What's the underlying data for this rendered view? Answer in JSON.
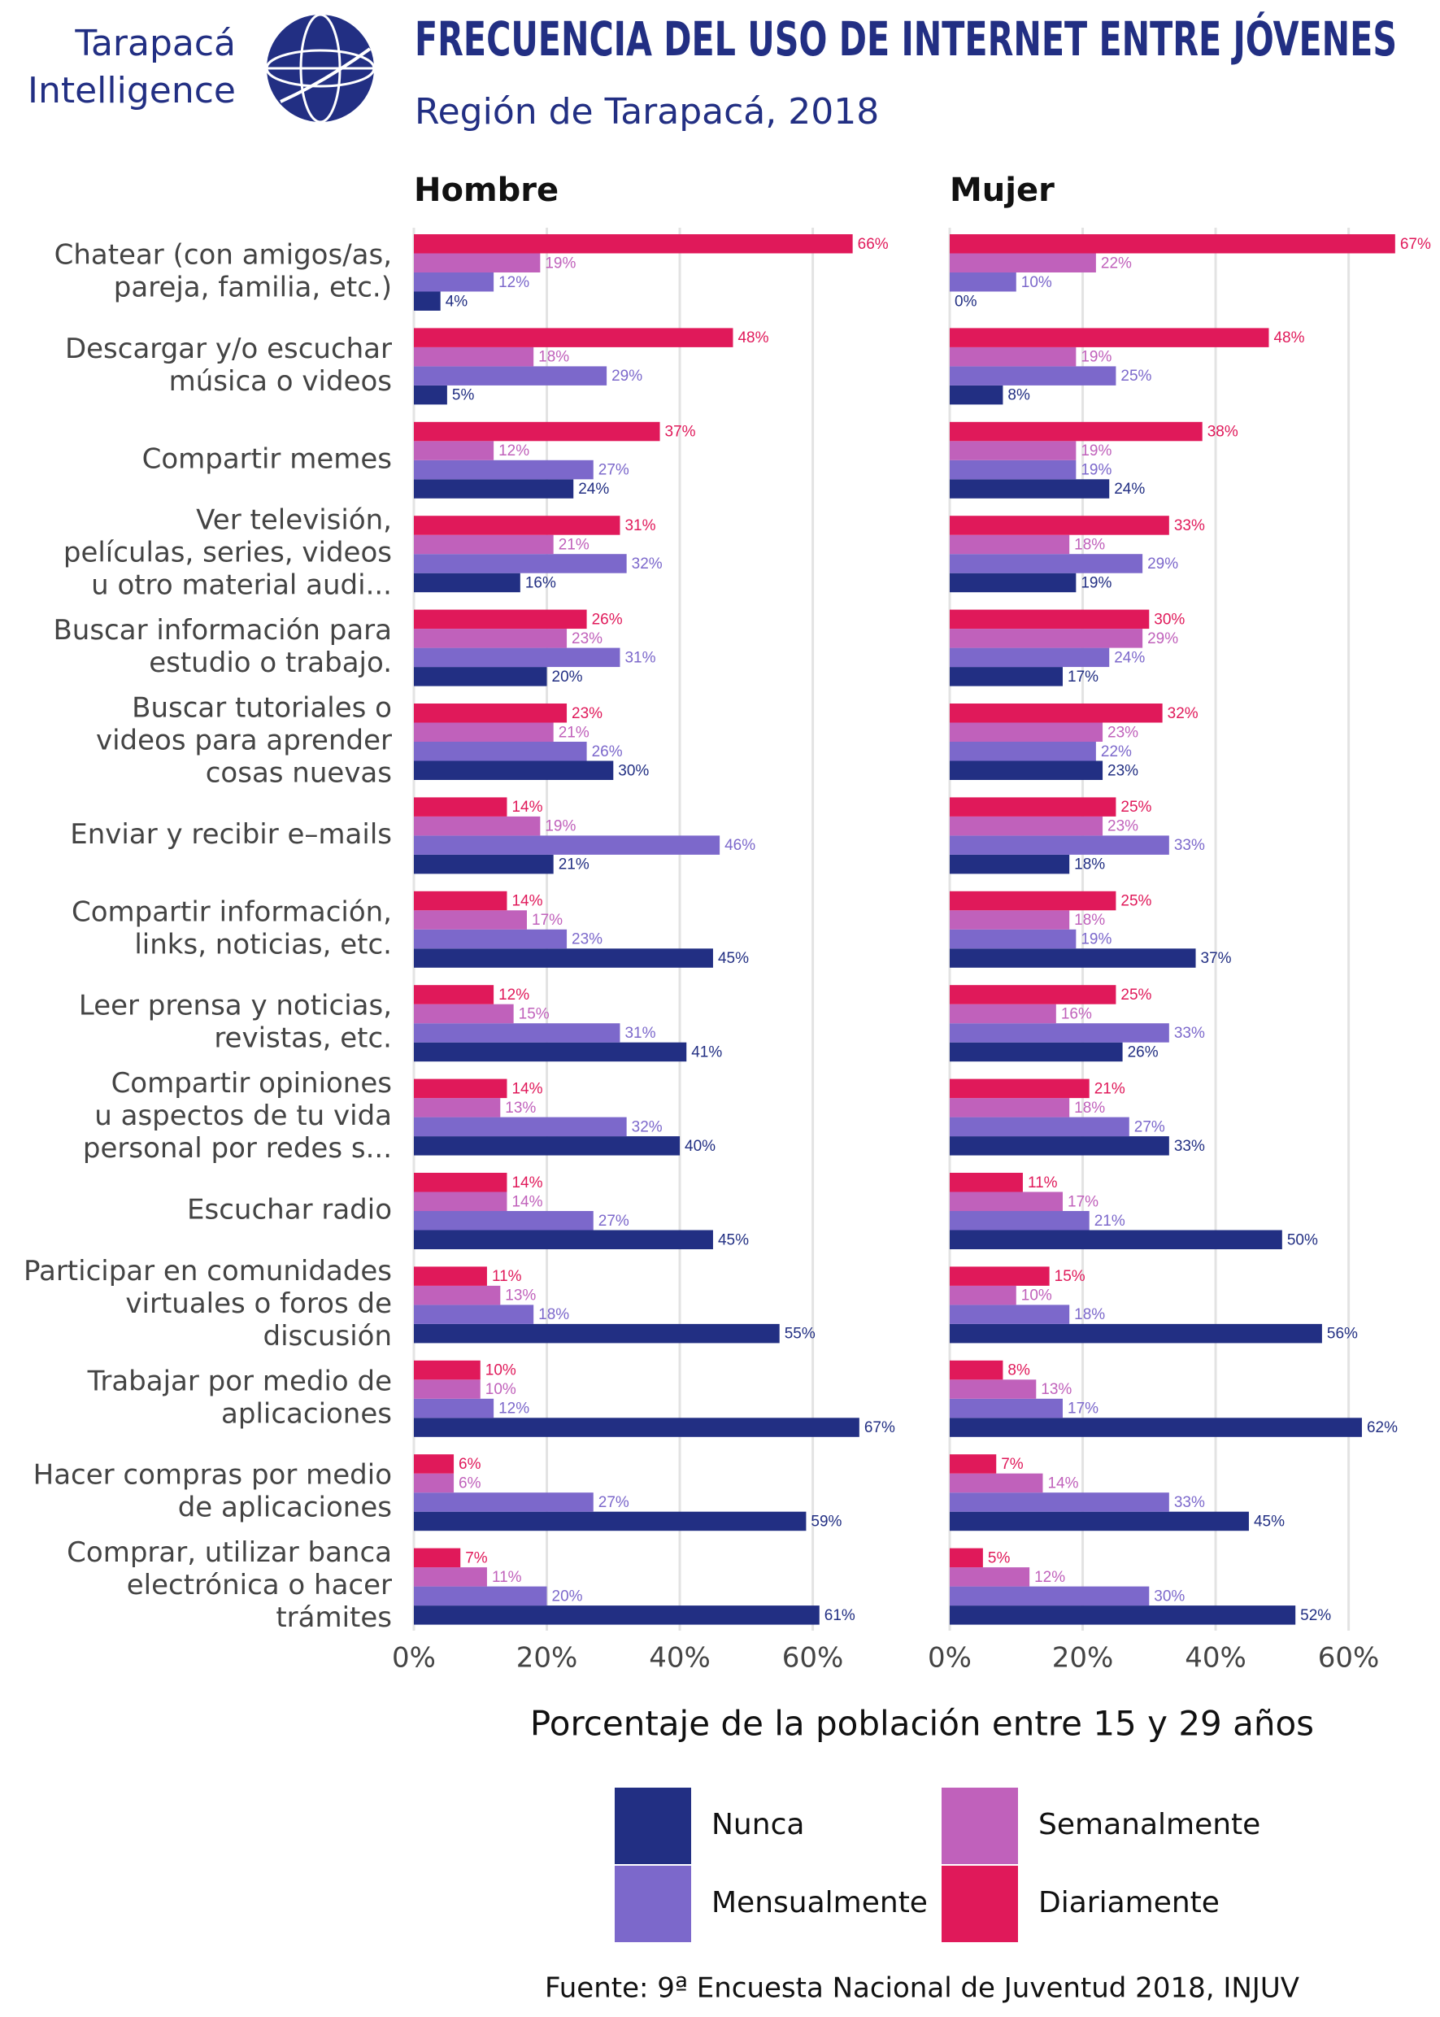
{
  "logo": [
    "Tarapacá",
    "Intelligence"
  ],
  "chart_data": {
    "type": "bar",
    "title": "FRECUENCIA DEL USO DE INTERNET ENTRE JÓVENES",
    "subtitle": "Región de Tarapacá, 2018",
    "xlabel": "Porcentaje de la población entre 15 y 29 años",
    "source": "Fuente: 9ª Encuesta Nacional de Juventud 2018, INJUV",
    "xlim": [
      0,
      68
    ],
    "xticks": [
      {
        "value": 0,
        "label": "0%"
      },
      {
        "value": 20,
        "label": "20%"
      },
      {
        "value": 40,
        "label": "40%"
      },
      {
        "value": 60,
        "label": "60%"
      }
    ],
    "grid": true,
    "categories": [
      [
        "Chatear (con amigos/as,",
        "pareja, familia, etc.)"
      ],
      [
        "Descargar y/o escuchar",
        "música o videos"
      ],
      [
        "Compartir memes"
      ],
      [
        "Ver televisión,",
        "películas, series, videos",
        "u otro material audi..."
      ],
      [
        "Buscar información para",
        "estudio o trabajo."
      ],
      [
        "Buscar tutoriales o",
        "videos para aprender",
        "cosas nuevas"
      ],
      [
        "Enviar y recibir e–mails"
      ],
      [
        "Compartir información,",
        "links, noticias, etc."
      ],
      [
        "Leer prensa y noticias,",
        "revistas, etc."
      ],
      [
        "Compartir opiniones",
        "u aspectos de tu vida",
        "personal por redes s..."
      ],
      [
        "Escuchar radio"
      ],
      [
        "Participar en comunidades",
        "virtuales o foros de",
        "discusión"
      ],
      [
        "Trabajar por medio de",
        "aplicaciones"
      ],
      [
        "Hacer compras por medio",
        "de aplicaciones"
      ],
      [
        "Comprar, utilizar banca",
        "electrónica o hacer",
        "trámites"
      ]
    ],
    "series": [
      {
        "name": "Nunca",
        "color": "#222f83"
      },
      {
        "name": "Mensualmente",
        "color": "#7c68cb"
      },
      {
        "name": "Semanalmente",
        "color": "#c061bb"
      },
      {
        "name": "Diariamente",
        "color": "#e0195a"
      }
    ],
    "panels": [
      {
        "title": "Hombre",
        "series": [
          {
            "values": [
              4,
              5,
              24,
              16,
              20,
              30,
              21,
              45,
              41,
              40,
              45,
              55,
              67,
              59,
              61
            ],
            "value_labels": [
              "4%",
              "5%",
              "24%",
              "16%",
              "20%",
              "30%",
              "21%",
              "45%",
              "41%",
              "40%",
              "45%",
              "55%",
              "67%",
              "59%",
              "61%"
            ]
          },
          {
            "values": [
              12,
              29,
              27,
              32,
              31,
              26,
              46,
              23,
              31,
              32,
              27,
              18,
              12,
              27,
              20
            ],
            "value_labels": [
              "12%",
              "29%",
              "27%",
              "32%",
              "31%",
              "26%",
              "46%",
              "23%",
              "31%",
              "32%",
              "27%",
              "18%",
              "12%",
              "27%",
              "20%"
            ]
          },
          {
            "values": [
              19,
              18,
              12,
              21,
              23,
              21,
              19,
              17,
              15,
              13,
              14,
              13,
              10,
              6,
              11
            ],
            "value_labels": [
              "19%",
              "18%",
              "12%",
              "21%",
              "23%",
              "21%",
              "19%",
              "17%",
              "15%",
              "13%",
              "14%",
              "13%",
              "10%",
              "6%",
              "11%"
            ]
          },
          {
            "values": [
              66,
              48,
              37,
              31,
              26,
              23,
              14,
              14,
              12,
              14,
              14,
              11,
              10,
              6,
              7
            ],
            "value_labels": [
              "66%",
              "48%",
              "37%",
              "31%",
              "26%",
              "23%",
              "14%",
              "14%",
              "12%",
              "14%",
              "14%",
              "11%",
              "10%",
              "6%",
              "7%"
            ]
          }
        ]
      },
      {
        "title": "Mujer",
        "series": [
          {
            "values": [
              0,
              8,
              24,
              19,
              17,
              23,
              18,
              37,
              26,
              33,
              50,
              56,
              62,
              45,
              52
            ],
            "value_labels": [
              "0%",
              "8%",
              "24%",
              "19%",
              "17%",
              "23%",
              "18%",
              "37%",
              "26%",
              "33%",
              "50%",
              "56%",
              "62%",
              "45%",
              "52%"
            ]
          },
          {
            "values": [
              10,
              25,
              19,
              29,
              24,
              22,
              33,
              19,
              33,
              27,
              21,
              18,
              17,
              33,
              30
            ],
            "value_labels": [
              "10%",
              "25%",
              "19%",
              "29%",
              "24%",
              "22%",
              "33%",
              "19%",
              "33%",
              "27%",
              "21%",
              "18%",
              "17%",
              "33%",
              "30%"
            ]
          },
          {
            "values": [
              22,
              19,
              19,
              18,
              29,
              23,
              23,
              18,
              16,
              18,
              17,
              10,
              13,
              14,
              12
            ],
            "value_labels": [
              "22%",
              "19%",
              "19%",
              "18%",
              "29%",
              "23%",
              "23%",
              "18%",
              "16%",
              "18%",
              "17%",
              "10%",
              "13%",
              "14%",
              "12%"
            ]
          },
          {
            "values": [
              67,
              48,
              38,
              33,
              30,
              32,
              25,
              25,
              25,
              21,
              11,
              15,
              8,
              7,
              5
            ],
            "value_labels": [
              "67%",
              "48%",
              "38%",
              "33%",
              "30%",
              "32%",
              "25%",
              "25%",
              "25%",
              "21%",
              "11%",
              "15%",
              "8%",
              "7%",
              "5%"
            ]
          }
        ]
      }
    ]
  }
}
